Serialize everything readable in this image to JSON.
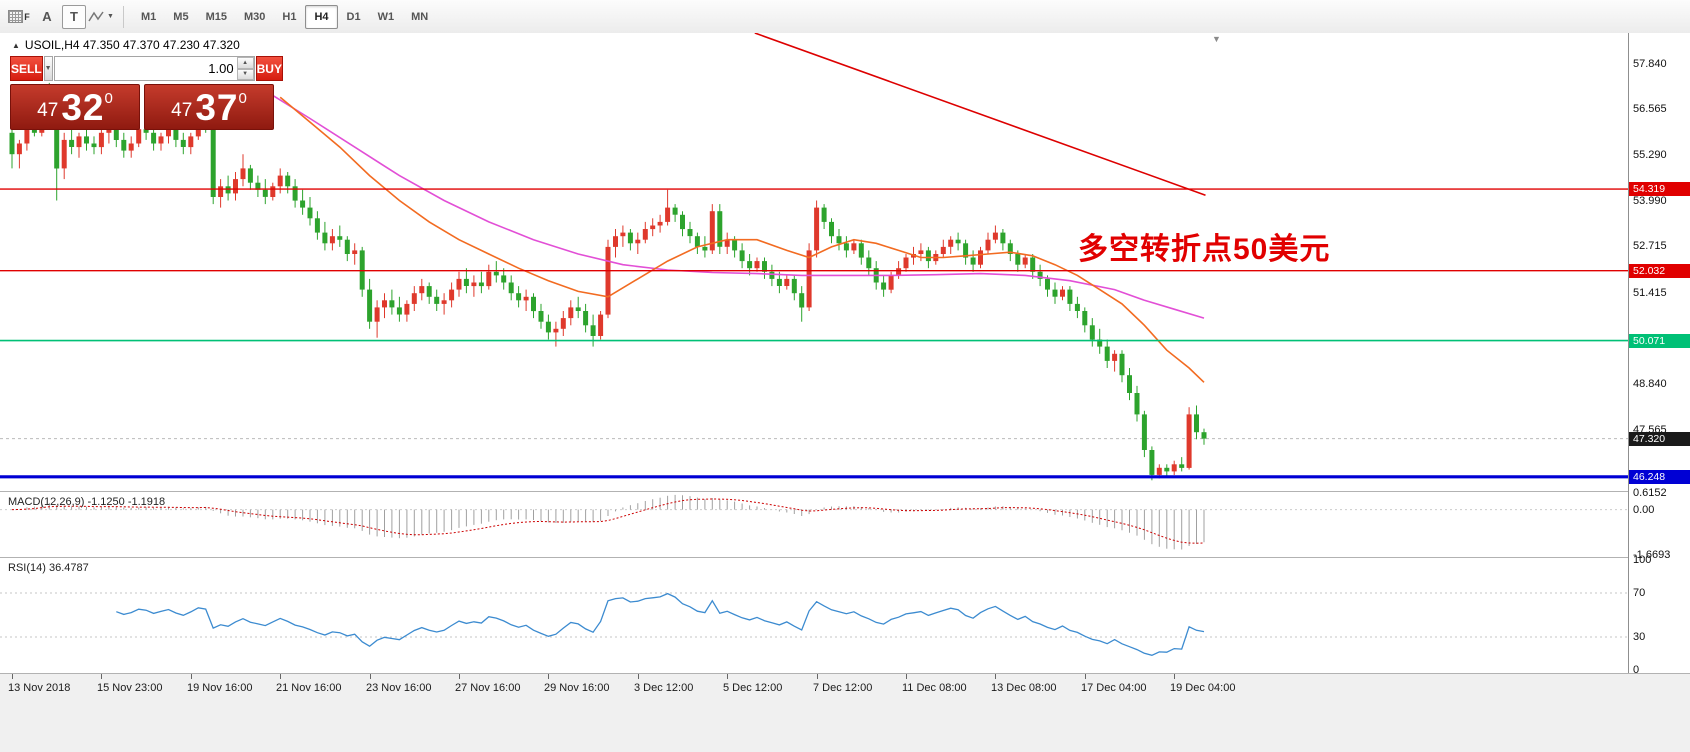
{
  "toolbar": {
    "tools": [
      {
        "name": "grid",
        "label": "F"
      },
      {
        "name": "text",
        "label": "A"
      },
      {
        "name": "textbox",
        "label": "T"
      },
      {
        "name": "shapes",
        "label": ""
      }
    ],
    "timeframes": [
      {
        "label": "M1",
        "active": false
      },
      {
        "label": "M5",
        "active": false
      },
      {
        "label": "M15",
        "active": false
      },
      {
        "label": "M30",
        "active": false
      },
      {
        "label": "H1",
        "active": false
      },
      {
        "label": "H4",
        "active": true
      },
      {
        "label": "D1",
        "active": false
      },
      {
        "label": "W1",
        "active": false
      },
      {
        "label": "MN",
        "active": false
      }
    ]
  },
  "icons": {
    "toolbar_dropdown": "▼",
    "volume_dropdown": "▼",
    "spinner_up": "▲",
    "spinner_down": "▼",
    "panel_toggle": "▲",
    "shift_marker": "▼"
  },
  "chart": {
    "title": "USOIL,H4 47.350 47.370 47.230 47.320"
  },
  "trade_panel": {
    "sell_label": "SELL",
    "buy_label": "BUY",
    "volume": "1.00",
    "sell_price": {
      "units": "47",
      "pips": "32",
      "pipette": "0"
    },
    "buy_price": {
      "units": "47",
      "pips": "37",
      "pipette": "0"
    }
  },
  "annotation": {
    "text": "多空转折点50美元",
    "color": "#e10000"
  },
  "price_axis": {
    "ticks": [
      "57.840",
      "56.565",
      "55.290",
      "53.990",
      "52.715",
      "51.415",
      "48.840",
      "47.565"
    ],
    "badges": [
      {
        "text": "54.319",
        "color": "#e00000"
      },
      {
        "text": "52.032",
        "color": "#e00000"
      },
      {
        "text": "50.071",
        "color": "#00c076"
      },
      {
        "text": "47.320",
        "color": "#1a1a1a"
      },
      {
        "text": "46.248",
        "color": "#0000d4"
      }
    ]
  },
  "macd_panel": {
    "label": "MACD(12,26,9) -1.1250 -1.1918",
    "axis": [
      "0.6152",
      "0.00",
      "-1.6693"
    ],
    "range": [
      0.65,
      -1.75
    ]
  },
  "rsi_panel": {
    "label": "RSI(14) 36.4787",
    "axis": [
      "100",
      "70",
      "30",
      "0"
    ],
    "levels": [
      70,
      30
    ]
  },
  "time_axis": [
    {
      "label": "13 Nov 2018",
      "bar": 0
    },
    {
      "label": "15 Nov 23:00",
      "bar": 12
    },
    {
      "label": "19 Nov 16:00",
      "bar": 24
    },
    {
      "label": "21 Nov 16:00",
      "bar": 36
    },
    {
      "label": "23 Nov 16:00",
      "bar": 48
    },
    {
      "label": "27 Nov 16:00",
      "bar": 60
    },
    {
      "label": "29 Nov 16:00",
      "bar": 72
    },
    {
      "label": "3 Dec 12:00",
      "bar": 84
    },
    {
      "label": "5 Dec 12:00",
      "bar": 96
    },
    {
      "label": "7 Dec 12:00",
      "bar": 108
    },
    {
      "label": "11 Dec 08:00",
      "bar": 120
    },
    {
      "label": "13 Dec 08:00",
      "bar": 132
    },
    {
      "label": "17 Dec 04:00",
      "bar": 144
    },
    {
      "label": "19 Dec 04:00",
      "bar": 156
    }
  ],
  "chart_data": {
    "type": "candlestick",
    "symbol": "USOIL",
    "timeframe": "H4",
    "current_ohlc": {
      "open": 47.35,
      "high": 47.37,
      "low": 47.23,
      "close": 47.32
    },
    "price_range": [
      58.7,
      45.85
    ],
    "colors": {
      "up": "#df392c",
      "down": "#2da32d"
    },
    "candles": [
      [
        55.9,
        56.3,
        54.9,
        55.3
      ],
      [
        55.3,
        55.7,
        54.9,
        55.6
      ],
      [
        55.6,
        56.3,
        55.4,
        56.1
      ],
      [
        56.1,
        56.6,
        55.8,
        55.9
      ],
      [
        55.9,
        57.2,
        55.8,
        56.9
      ],
      [
        56.9,
        57.3,
        56.2,
        56.4
      ],
      [
        56.4,
        56.6,
        54.0,
        54.9
      ],
      [
        54.9,
        55.9,
        54.6,
        55.7
      ],
      [
        55.7,
        56.1,
        55.3,
        55.5
      ],
      [
        55.5,
        55.9,
        55.2,
        55.8
      ],
      [
        55.8,
        56.0,
        55.4,
        55.6
      ],
      [
        55.6,
        55.8,
        55.3,
        55.5
      ],
      [
        55.5,
        56.0,
        55.3,
        55.9
      ],
      [
        55.9,
        56.3,
        55.6,
        56.1
      ],
      [
        56.1,
        56.2,
        55.5,
        55.7
      ],
      [
        55.7,
        55.9,
        55.2,
        55.4
      ],
      [
        55.4,
        55.8,
        55.2,
        55.6
      ],
      [
        55.6,
        56.1,
        55.5,
        56.0
      ],
      [
        56.0,
        56.3,
        55.7,
        55.9
      ],
      [
        55.9,
        56.0,
        55.4,
        55.6
      ],
      [
        55.6,
        55.9,
        55.4,
        55.8
      ],
      [
        55.8,
        56.2,
        55.6,
        56.0
      ],
      [
        56.0,
        56.1,
        55.5,
        55.7
      ],
      [
        55.7,
        55.9,
        55.3,
        55.5
      ],
      [
        55.5,
        55.9,
        55.3,
        55.8
      ],
      [
        55.8,
        56.4,
        55.7,
        56.2
      ],
      [
        56.2,
        56.4,
        55.9,
        56.1
      ],
      [
        56.1,
        56.2,
        53.9,
        54.1
      ],
      [
        54.1,
        54.6,
        53.8,
        54.4
      ],
      [
        54.4,
        54.7,
        54.0,
        54.2
      ],
      [
        54.2,
        54.8,
        54.0,
        54.6
      ],
      [
        54.6,
        55.3,
        54.4,
        54.9
      ],
      [
        54.9,
        55.0,
        54.3,
        54.5
      ],
      [
        54.5,
        54.7,
        54.1,
        54.3
      ],
      [
        54.3,
        54.6,
        53.9,
        54.1
      ],
      [
        54.1,
        54.5,
        54.0,
        54.4
      ],
      [
        54.4,
        54.9,
        54.2,
        54.7
      ],
      [
        54.7,
        54.8,
        54.2,
        54.4
      ],
      [
        54.4,
        54.6,
        53.8,
        54.0
      ],
      [
        54.0,
        54.3,
        53.6,
        53.8
      ],
      [
        53.8,
        54.1,
        53.3,
        53.5
      ],
      [
        53.5,
        53.7,
        52.9,
        53.1
      ],
      [
        53.1,
        53.4,
        52.6,
        52.8
      ],
      [
        52.8,
        53.2,
        52.6,
        53.0
      ],
      [
        53.0,
        53.3,
        52.7,
        52.9
      ],
      [
        52.9,
        53.0,
        52.3,
        52.5
      ],
      [
        52.5,
        52.8,
        52.2,
        52.6
      ],
      [
        52.6,
        52.7,
        51.3,
        51.5
      ],
      [
        51.5,
        51.8,
        50.4,
        50.6
      ],
      [
        50.6,
        51.2,
        50.15,
        51.0
      ],
      [
        51.0,
        51.4,
        50.7,
        51.2
      ],
      [
        51.2,
        51.5,
        50.8,
        51.0
      ],
      [
        51.0,
        51.3,
        50.6,
        50.8
      ],
      [
        50.8,
        51.2,
        50.6,
        51.1
      ],
      [
        51.1,
        51.6,
        50.9,
        51.4
      ],
      [
        51.4,
        51.8,
        51.2,
        51.6
      ],
      [
        51.6,
        51.7,
        51.1,
        51.3
      ],
      [
        51.3,
        51.5,
        50.9,
        51.1
      ],
      [
        51.1,
        51.4,
        50.8,
        51.2
      ],
      [
        51.2,
        51.7,
        51.0,
        51.5
      ],
      [
        51.5,
        52.0,
        51.3,
        51.8
      ],
      [
        51.8,
        52.1,
        51.4,
        51.6
      ],
      [
        51.6,
        51.9,
        51.3,
        51.7
      ],
      [
        51.7,
        52.0,
        51.4,
        51.6
      ],
      [
        51.6,
        52.2,
        51.5,
        52.0
      ],
      [
        52.0,
        52.3,
        51.7,
        51.9
      ],
      [
        51.9,
        52.1,
        51.5,
        51.7
      ],
      [
        51.7,
        51.9,
        51.2,
        51.4
      ],
      [
        51.4,
        51.6,
        51.0,
        51.2
      ],
      [
        51.2,
        51.5,
        50.9,
        51.3
      ],
      [
        51.3,
        51.4,
        50.7,
        50.9
      ],
      [
        50.9,
        51.1,
        50.4,
        50.6
      ],
      [
        50.6,
        50.8,
        50.1,
        50.3
      ],
      [
        50.3,
        50.6,
        49.9,
        50.4
      ],
      [
        50.4,
        50.9,
        50.2,
        50.7
      ],
      [
        50.7,
        51.2,
        50.5,
        51.0
      ],
      [
        51.0,
        51.3,
        50.7,
        50.9
      ],
      [
        50.9,
        51.1,
        50.3,
        50.5
      ],
      [
        50.5,
        50.8,
        49.9,
        50.2
      ],
      [
        50.2,
        50.9,
        50.1,
        50.8
      ],
      [
        50.8,
        52.9,
        50.7,
        52.7
      ],
      [
        52.7,
        53.2,
        52.4,
        53.0
      ],
      [
        53.0,
        53.3,
        52.7,
        53.1
      ],
      [
        53.1,
        53.2,
        52.6,
        52.8
      ],
      [
        52.8,
        53.1,
        52.5,
        52.9
      ],
      [
        52.9,
        53.4,
        52.8,
        53.2
      ],
      [
        53.2,
        53.5,
        53.0,
        53.3
      ],
      [
        53.3,
        53.6,
        53.1,
        53.4
      ],
      [
        53.4,
        54.3,
        53.3,
        53.8
      ],
      [
        53.8,
        53.9,
        53.4,
        53.6
      ],
      [
        53.6,
        53.7,
        53.0,
        53.2
      ],
      [
        53.2,
        53.4,
        52.8,
        53.0
      ],
      [
        53.0,
        53.1,
        52.5,
        52.7
      ],
      [
        52.7,
        53.0,
        52.4,
        52.6
      ],
      [
        52.6,
        53.9,
        52.5,
        53.7
      ],
      [
        53.7,
        53.9,
        52.5,
        52.7
      ],
      [
        52.7,
        53.1,
        52.5,
        52.9
      ],
      [
        52.9,
        53.0,
        52.4,
        52.6
      ],
      [
        52.6,
        52.8,
        52.1,
        52.3
      ],
      [
        52.3,
        52.5,
        51.9,
        52.1
      ],
      [
        52.1,
        52.4,
        52.0,
        52.3
      ],
      [
        52.3,
        52.4,
        51.8,
        52.0
      ],
      [
        52.0,
        52.2,
        51.6,
        51.8
      ],
      [
        51.8,
        52.0,
        51.4,
        51.6
      ],
      [
        51.6,
        51.9,
        51.5,
        51.8
      ],
      [
        51.8,
        51.9,
        51.2,
        51.4
      ],
      [
        51.4,
        51.6,
        50.6,
        51.0
      ],
      [
        51.0,
        52.8,
        50.9,
        52.6
      ],
      [
        52.6,
        54.0,
        52.4,
        53.8
      ],
      [
        53.8,
        53.9,
        53.2,
        53.4
      ],
      [
        53.4,
        53.5,
        52.8,
        53.0
      ],
      [
        53.0,
        53.2,
        52.6,
        52.8
      ],
      [
        52.8,
        53.0,
        52.4,
        52.6
      ],
      [
        52.6,
        52.9,
        52.5,
        52.8
      ],
      [
        52.8,
        52.9,
        52.2,
        52.4
      ],
      [
        52.4,
        52.6,
        51.9,
        52.1
      ],
      [
        52.1,
        52.3,
        51.5,
        51.7
      ],
      [
        51.7,
        51.9,
        51.3,
        51.5
      ],
      [
        51.5,
        52.0,
        51.4,
        51.9
      ],
      [
        51.9,
        52.3,
        51.8,
        52.1
      ],
      [
        52.1,
        52.5,
        52.0,
        52.4
      ],
      [
        52.4,
        52.7,
        52.2,
        52.5
      ],
      [
        52.5,
        52.8,
        52.3,
        52.6
      ],
      [
        52.6,
        52.7,
        52.1,
        52.3
      ],
      [
        52.3,
        52.6,
        52.2,
        52.5
      ],
      [
        52.5,
        52.9,
        52.4,
        52.7
      ],
      [
        52.7,
        53.0,
        52.5,
        52.9
      ],
      [
        52.9,
        53.1,
        52.6,
        52.8
      ],
      [
        52.8,
        52.9,
        52.2,
        52.4
      ],
      [
        52.4,
        52.6,
        52.0,
        52.2
      ],
      [
        52.2,
        52.7,
        52.1,
        52.6
      ],
      [
        52.6,
        53.1,
        52.5,
        52.9
      ],
      [
        52.9,
        53.3,
        52.8,
        53.1
      ],
      [
        53.1,
        53.2,
        52.6,
        52.8
      ],
      [
        52.8,
        52.9,
        52.3,
        52.5
      ],
      [
        52.5,
        52.6,
        52.0,
        52.2
      ],
      [
        52.2,
        52.5,
        52.1,
        52.4
      ],
      [
        52.4,
        52.5,
        51.8,
        52.0
      ],
      [
        52.0,
        52.2,
        51.6,
        51.8
      ],
      [
        51.8,
        51.9,
        51.3,
        51.5
      ],
      [
        51.5,
        51.7,
        51.1,
        51.3
      ],
      [
        51.3,
        51.6,
        51.2,
        51.5
      ],
      [
        51.5,
        51.6,
        50.9,
        51.1
      ],
      [
        51.1,
        51.3,
        50.7,
        50.9
      ],
      [
        50.9,
        51.0,
        50.3,
        50.5
      ],
      [
        50.5,
        50.7,
        49.9,
        50.1
      ],
      [
        50.1,
        50.4,
        49.7,
        49.9
      ],
      [
        49.9,
        50.1,
        49.3,
        49.5
      ],
      [
        49.5,
        49.8,
        49.2,
        49.7
      ],
      [
        49.7,
        49.8,
        48.9,
        49.1
      ],
      [
        49.1,
        49.3,
        48.4,
        48.6
      ],
      [
        48.6,
        48.8,
        47.8,
        48.0
      ],
      [
        48.0,
        48.1,
        46.8,
        47.0
      ],
      [
        47.0,
        47.1,
        46.15,
        46.3
      ],
      [
        46.3,
        46.6,
        46.2,
        46.5
      ],
      [
        46.5,
        46.6,
        46.25,
        46.4
      ],
      [
        46.4,
        46.7,
        46.3,
        46.6
      ],
      [
        46.6,
        46.8,
        46.4,
        46.5
      ],
      [
        46.5,
        48.2,
        46.45,
        48.0
      ],
      [
        48.0,
        48.25,
        47.3,
        47.5
      ],
      [
        47.5,
        47.6,
        47.15,
        47.32
      ]
    ],
    "ma_fast": {
      "name": "moving-average-fast",
      "color": "#f26b21",
      "points": [
        [
          36,
          56.9
        ],
        [
          40,
          56.2
        ],
        [
          44,
          55.5
        ],
        [
          48,
          54.7
        ],
        [
          52,
          54.0
        ],
        [
          56,
          53.4
        ],
        [
          60,
          52.9
        ],
        [
          64,
          52.5
        ],
        [
          68,
          52.1
        ],
        [
          72,
          51.75
        ],
        [
          76,
          51.45
        ],
        [
          80,
          51.3
        ],
        [
          84,
          51.8
        ],
        [
          88,
          52.3
        ],
        [
          92,
          52.7
        ],
        [
          96,
          52.9
        ],
        [
          100,
          52.9
        ],
        [
          104,
          52.6
        ],
        [
          107,
          52.4
        ],
        [
          110,
          52.7
        ],
        [
          113,
          52.9
        ],
        [
          116,
          52.8
        ],
        [
          119,
          52.6
        ],
        [
          122,
          52.4
        ],
        [
          125,
          52.4
        ],
        [
          128,
          52.45
        ],
        [
          131,
          52.5
        ],
        [
          134,
          52.55
        ],
        [
          137,
          52.45
        ],
        [
          140,
          52.2
        ],
        [
          143,
          51.9
        ],
        [
          146,
          51.5
        ],
        [
          149,
          51.1
        ],
        [
          152,
          50.5
        ],
        [
          155,
          49.8
        ],
        [
          158,
          49.3
        ],
        [
          160,
          48.9
        ]
      ]
    },
    "ma_slow": {
      "name": "moving-average-slow",
      "color": "#e24fd6",
      "points": [
        [
          35,
          56.95
        ],
        [
          40,
          56.3
        ],
        [
          46,
          55.5
        ],
        [
          52,
          54.7
        ],
        [
          58,
          54.0
        ],
        [
          64,
          53.4
        ],
        [
          70,
          52.9
        ],
        [
          76,
          52.5
        ],
        [
          82,
          52.2
        ],
        [
          88,
          52.05
        ],
        [
          94,
          51.98
        ],
        [
          100,
          51.95
        ],
        [
          106,
          51.9
        ],
        [
          112,
          51.9
        ],
        [
          118,
          51.9
        ],
        [
          124,
          51.92
        ],
        [
          130,
          51.95
        ],
        [
          136,
          51.9
        ],
        [
          142,
          51.75
        ],
        [
          148,
          51.5
        ],
        [
          152,
          51.2
        ],
        [
          156,
          50.95
        ],
        [
          160,
          50.7
        ]
      ]
    },
    "trendline": {
      "color": "#dd0000",
      "from_bar": 99.7,
      "from_price": 58.7,
      "to_bar": 160.2,
      "to_price": 54.15
    },
    "hlines": [
      {
        "price": 54.319,
        "color": "#e00000",
        "width": 1.4
      },
      {
        "price": 52.032,
        "color": "#e00000",
        "width": 1.4
      },
      {
        "price": 50.071,
        "color": "#00c076",
        "width": 1.6
      },
      {
        "price": 46.248,
        "color": "#0000d4",
        "width": 3.2
      }
    ],
    "bid_line": {
      "price": 47.32,
      "color": "#bbbbbb"
    }
  }
}
